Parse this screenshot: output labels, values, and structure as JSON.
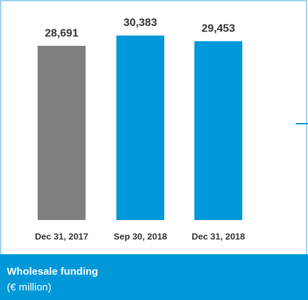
{
  "chart_data": {
    "type": "bar",
    "title": "Wholesale funding",
    "subtitle": "(€ million)",
    "categories": [
      "Dec 31, 2017",
      "Sep 30, 2018",
      "Dec 31, 2018"
    ],
    "values": [
      28691,
      30383,
      29453
    ],
    "value_labels": [
      "28,691",
      "30,383",
      "29,453"
    ],
    "colors": [
      "#7f7f7f",
      "#0098d8",
      "#0098d8"
    ]
  }
}
